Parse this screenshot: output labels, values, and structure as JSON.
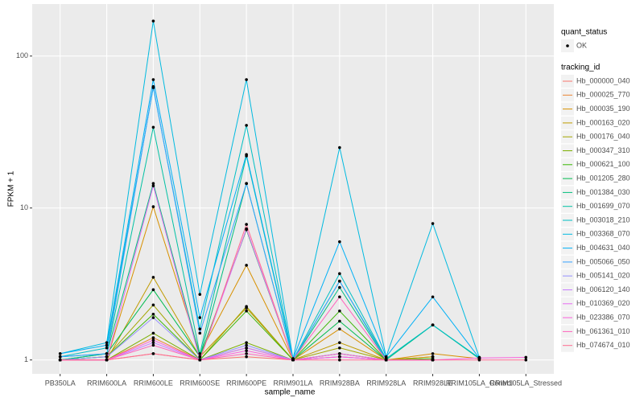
{
  "chart_data": {
    "type": "line",
    "y_label": "FPKM + 1",
    "x_label": "sample_name",
    "log_y": true,
    "grid": true,
    "categories": [
      "PB350LA",
      "RRIM600LA",
      "RRIM600LE",
      "RRIM600SE",
      "RRIM600PE",
      "RRIM901LA",
      "RRIM928BA",
      "RRIM928LA",
      "RRIM928LE",
      "RRIM105LA_Control",
      "RRIM105LA_Stressed"
    ],
    "ylim": [
      0.81,
      220
    ],
    "yticks": [
      1,
      10,
      100
    ],
    "point_color": "#000000",
    "shape_legend": {
      "title": "quant_status",
      "levels": [
        "OK"
      ]
    },
    "legend_title": "tracking_id",
    "series": [
      {
        "name": "Hb_000000_040",
        "color": "#F8766D",
        "values": [
          1,
          1,
          1.1,
          1,
          1.05,
          1,
          1.05,
          1,
          1,
          null,
          null
        ]
      },
      {
        "name": "Hb_000025_770",
        "color": "#EA8331",
        "values": [
          1,
          1,
          1.4,
          1,
          1.2,
          1,
          1.1,
          1,
          1.05,
          null,
          null
        ]
      },
      {
        "name": "Hb_000035_190",
        "color": "#D89000",
        "values": [
          1,
          1,
          10.2,
          1.1,
          4.2,
          1,
          1.6,
          1,
          1.1,
          1.02,
          null
        ]
      },
      {
        "name": "Hb_000163_020",
        "color": "#C09B00",
        "values": [
          1,
          1,
          3.5,
          1.05,
          2.2,
          1,
          1.3,
          1,
          1.05,
          null,
          null
        ]
      },
      {
        "name": "Hb_000176_040",
        "color": "#A3A500",
        "values": [
          1,
          1.05,
          2.3,
          1,
          2.25,
          1,
          1.2,
          1,
          1,
          null,
          null
        ]
      },
      {
        "name": "Hb_000347_310",
        "color": "#7CAE00",
        "values": [
          1,
          1,
          1.5,
          1,
          1.3,
          1,
          1.1,
          1,
          1,
          null,
          null
        ]
      },
      {
        "name": "Hb_000621_100",
        "color": "#39B600",
        "values": [
          1,
          1.05,
          2.0,
          1,
          2.1,
          1,
          2.1,
          1,
          1.02,
          null,
          null
        ]
      },
      {
        "name": "Hb_001205_280",
        "color": "#00BB4E",
        "values": [
          1,
          1.1,
          2.9,
          1.05,
          7.2,
          1,
          1.8,
          1,
          1,
          null,
          null
        ]
      },
      {
        "name": "Hb_001384_030",
        "color": "#00BF7D",
        "values": [
          1,
          1.1,
          14.5,
          1.05,
          14.5,
          1,
          3.0,
          1,
          1.7,
          1.02,
          null
        ]
      },
      {
        "name": "Hb_001699_070",
        "color": "#00C1A3",
        "values": [
          1.05,
          1.1,
          34,
          1.1,
          22,
          1,
          3.3,
          1.02,
          1.7,
          1.03,
          null
        ]
      },
      {
        "name": "Hb_003018_210",
        "color": "#00BFC4",
        "values": [
          1.05,
          1.2,
          62,
          1.6,
          35,
          1,
          3.7,
          1.02,
          1.7,
          1.03,
          null
        ]
      },
      {
        "name": "Hb_003368_070",
        "color": "#00BAE0",
        "values": [
          1.1,
          1.3,
          170,
          2.7,
          70,
          1.02,
          25,
          1.05,
          7.9,
          1.04,
          null
        ]
      },
      {
        "name": "Hb_004631_040",
        "color": "#00B0F6",
        "values": [
          1.1,
          1.25,
          70,
          1.9,
          22.5,
          1.02,
          6.0,
          1.05,
          2.6,
          1.03,
          null
        ]
      },
      {
        "name": "Hb_005066_050",
        "color": "#35A2FF",
        "values": [
          1.05,
          1.1,
          63,
          1.5,
          14.5,
          1,
          3.3,
          1,
          1,
          null,
          null
        ]
      },
      {
        "name": "Hb_005141_020",
        "color": "#9590FF",
        "values": [
          1,
          1.05,
          1.9,
          1,
          1.25,
          1,
          1.05,
          1,
          1,
          null,
          null
        ]
      },
      {
        "name": "Hb_006120_140",
        "color": "#C77CFF",
        "values": [
          1,
          1,
          1.3,
          1,
          1.2,
          1,
          1.05,
          1,
          1,
          null,
          null
        ]
      },
      {
        "name": "Hb_010369_020",
        "color": "#E76BF3",
        "values": [
          1,
          1,
          14,
          1,
          7.3,
          1,
          1.1,
          1,
          1,
          null,
          null
        ]
      },
      {
        "name": "Hb_023386_070",
        "color": "#FA62DB",
        "values": [
          1,
          1,
          1.35,
          1,
          1.15,
          1,
          1.05,
          1,
          1,
          1.03,
          1.04
        ]
      },
      {
        "name": "Hb_061361_010",
        "color": "#FF62BC",
        "values": [
          1,
          1,
          1.25,
          1,
          1.1,
          1,
          2.6,
          1,
          1,
          null,
          null
        ]
      },
      {
        "name": "Hb_074674_010",
        "color": "#FF6C91",
        "values": [
          1,
          1,
          1.1,
          1,
          7.8,
          1,
          1.0,
          1,
          1,
          1.0,
          1.0
        ]
      }
    ]
  }
}
